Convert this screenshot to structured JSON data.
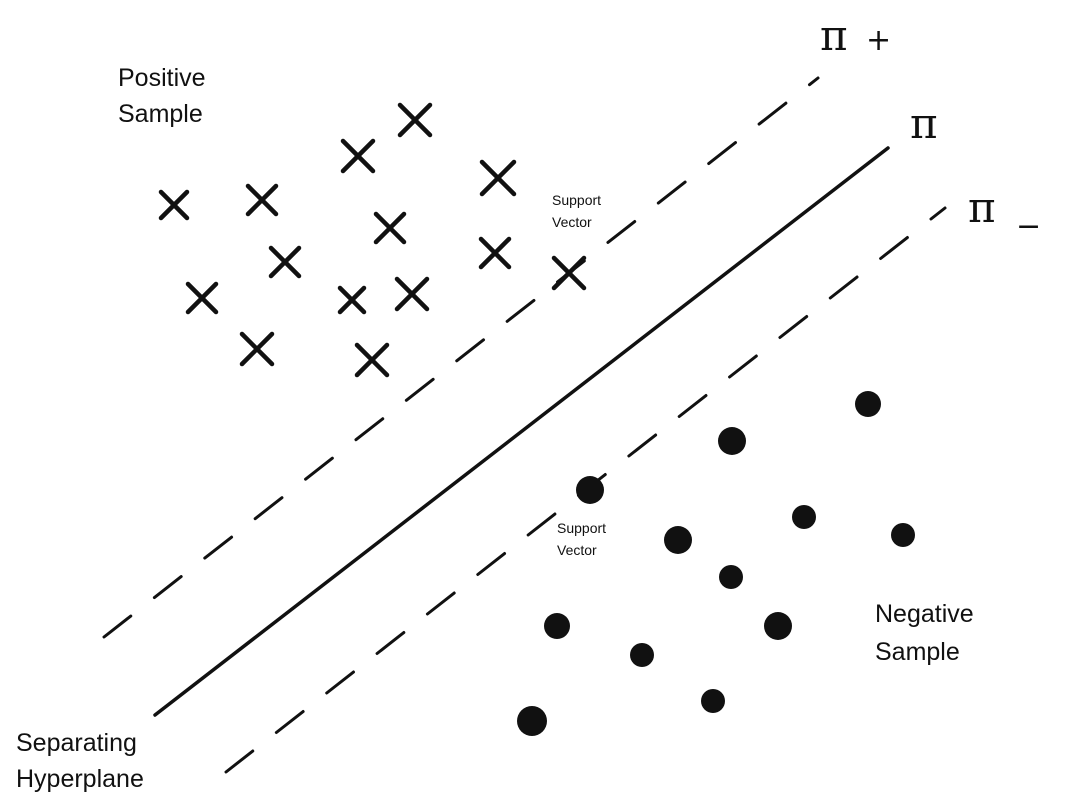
{
  "labels": {
    "positive_line1": "Positive",
    "positive_line2": "Sample",
    "negative_line1": "Negative",
    "negative_line2": "Sample",
    "hyperplane_line1": "Separating",
    "hyperplane_line2": "Hyperplane",
    "support_vector_top_line1": "Support",
    "support_vector_top_line2": "Vector",
    "support_vector_bottom_line1": "Support",
    "support_vector_bottom_line2": "Vector",
    "pi_plus_symbol": "π",
    "pi_plus_sign": "+",
    "pi_symbol": "π",
    "pi_minus_symbol": "π",
    "pi_minus_sign": "−"
  },
  "positive_samples_count": 16,
  "negative_samples_count": 13,
  "colors": {
    "ink": "#111111",
    "background": "#ffffff"
  }
}
